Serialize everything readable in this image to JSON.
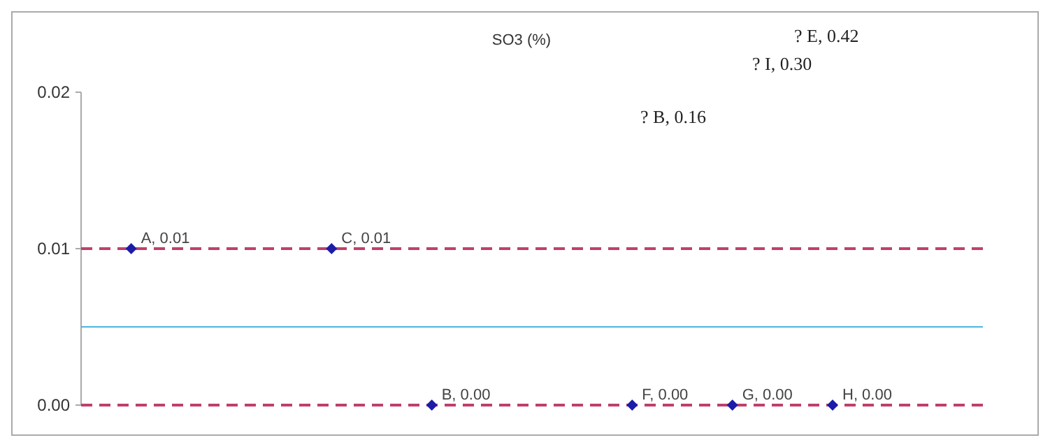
{
  "chart_data": {
    "type": "scatter",
    "title": "SO3 (%)",
    "categories": [
      null,
      null,
      null,
      null,
      null,
      null,
      null,
      null,
      null
    ],
    "series": [
      {
        "color": "#1c1ca8",
        "values": [
          0.01,
          null,
          0.01,
          0,
          null,
          0,
          0,
          0,
          null
        ],
        "value_labels": [
          "A, 0.01",
          null,
          "C, 0.01",
          "B, 0.00",
          null,
          "F, 0.00",
          "G, 0.00",
          "H, 0.00",
          null
        ]
      }
    ],
    "marker": "diamond",
    "ylim": [
      0,
      0.02
    ],
    "yticks": [
      {
        "value": 0,
        "label": "0.00"
      },
      {
        "value": 0.01,
        "label": "0.01"
      },
      {
        "value": 0.02,
        "label": "0.02"
      }
    ],
    "ref_lines": [
      {
        "axis": "y",
        "value": 0.01,
        "color": "#c0406a",
        "line_style": "dashed"
      },
      {
        "axis": "y",
        "value": 0,
        "color": "#c0406a",
        "line_style": "dashed"
      },
      {
        "axis": "y",
        "value": 0.005,
        "color": "#4ab4e0",
        "line_style": "solid"
      }
    ],
    "annotations": [
      "? E, 0.42",
      "? I, 0.30",
      "? B, 0.16"
    ],
    "grid": false
  }
}
